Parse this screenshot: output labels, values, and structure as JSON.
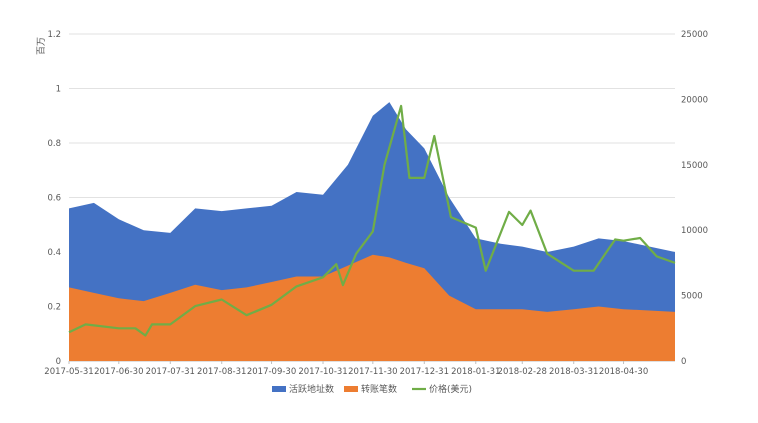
{
  "chart_data": {
    "type": "area",
    "y_unit_label": "百万",
    "left_axis": {
      "ylim": [
        0,
        1.2
      ],
      "ticks": [
        "0",
        "0.2",
        "0.4",
        "0.6",
        "0.8",
        "1",
        "1.2"
      ]
    },
    "right_axis": {
      "ylim": [
        0,
        25000
      ],
      "ticks": [
        "0",
        "5000",
        "10000",
        "15000",
        "20000",
        "25000"
      ]
    },
    "x_tick_labels": [
      "2017-05-31",
      "2017-06-30",
      "2017-07-31",
      "2017-08-31",
      "2017-09-30",
      "2017-10-31",
      "2017-11-30",
      "2017-12-31",
      "2018-01-31",
      "2018-02-28",
      "2018-03-31",
      "2018-04-30"
    ],
    "x_range": [
      "2017-05-31",
      "2018-05-31"
    ],
    "grid": "horizontal",
    "legend_position": "bottom",
    "series": [
      {
        "name": "活跃地址数",
        "kind": "area",
        "axis": "left",
        "color": "#4472C4",
        "points": [
          [
            "2017-05-31",
            0.56
          ],
          [
            "2017-06-15",
            0.58
          ],
          [
            "2017-06-30",
            0.52
          ],
          [
            "2017-07-15",
            0.48
          ],
          [
            "2017-07-31",
            0.47
          ],
          [
            "2017-08-15",
            0.56
          ],
          [
            "2017-08-31",
            0.55
          ],
          [
            "2017-09-15",
            0.56
          ],
          [
            "2017-09-30",
            0.57
          ],
          [
            "2017-10-15",
            0.62
          ],
          [
            "2017-10-31",
            0.61
          ],
          [
            "2017-11-15",
            0.72
          ],
          [
            "2017-11-30",
            0.9
          ],
          [
            "2017-12-10",
            0.95
          ],
          [
            "2017-12-20",
            0.85
          ],
          [
            "2017-12-31",
            0.78
          ],
          [
            "2018-01-15",
            0.6
          ],
          [
            "2018-01-31",
            0.45
          ],
          [
            "2018-02-15",
            0.43
          ],
          [
            "2018-02-28",
            0.42
          ],
          [
            "2018-03-15",
            0.4
          ],
          [
            "2018-03-31",
            0.42
          ],
          [
            "2018-04-15",
            0.45
          ],
          [
            "2018-04-30",
            0.44
          ],
          [
            "2018-05-31",
            0.4
          ]
        ]
      },
      {
        "name": "转账笔数",
        "kind": "area",
        "axis": "left",
        "color": "#ED7D31",
        "points": [
          [
            "2017-05-31",
            0.27
          ],
          [
            "2017-06-15",
            0.25
          ],
          [
            "2017-06-30",
            0.23
          ],
          [
            "2017-07-15",
            0.22
          ],
          [
            "2017-07-31",
            0.25
          ],
          [
            "2017-08-15",
            0.28
          ],
          [
            "2017-08-31",
            0.26
          ],
          [
            "2017-09-15",
            0.27
          ],
          [
            "2017-09-30",
            0.29
          ],
          [
            "2017-10-15",
            0.31
          ],
          [
            "2017-10-31",
            0.31
          ],
          [
            "2017-11-15",
            0.35
          ],
          [
            "2017-11-30",
            0.39
          ],
          [
            "2017-12-10",
            0.38
          ],
          [
            "2017-12-20",
            0.36
          ],
          [
            "2017-12-31",
            0.34
          ],
          [
            "2018-01-15",
            0.24
          ],
          [
            "2018-01-31",
            0.19
          ],
          [
            "2018-02-15",
            0.19
          ],
          [
            "2018-02-28",
            0.19
          ],
          [
            "2018-03-15",
            0.18
          ],
          [
            "2018-03-31",
            0.19
          ],
          [
            "2018-04-15",
            0.2
          ],
          [
            "2018-04-30",
            0.19
          ],
          [
            "2018-05-31",
            0.18
          ]
        ]
      },
      {
        "name": "价格(美元)",
        "kind": "line",
        "axis": "right",
        "color": "#70AD47",
        "points": [
          [
            "2017-05-31",
            2200
          ],
          [
            "2017-06-10",
            2800
          ],
          [
            "2017-06-30",
            2500
          ],
          [
            "2017-07-10",
            2500
          ],
          [
            "2017-07-16",
            1950
          ],
          [
            "2017-07-20",
            2800
          ],
          [
            "2017-07-31",
            2800
          ],
          [
            "2017-08-15",
            4200
          ],
          [
            "2017-08-31",
            4700
          ],
          [
            "2017-09-15",
            3500
          ],
          [
            "2017-09-30",
            4300
          ],
          [
            "2017-10-15",
            5700
          ],
          [
            "2017-10-31",
            6400
          ],
          [
            "2017-11-08",
            7400
          ],
          [
            "2017-11-12",
            5800
          ],
          [
            "2017-11-20",
            8200
          ],
          [
            "2017-11-30",
            9900
          ],
          [
            "2017-12-07",
            15000
          ],
          [
            "2017-12-17",
            19500
          ],
          [
            "2017-12-22",
            14000
          ],
          [
            "2017-12-31",
            14000
          ],
          [
            "2018-01-06",
            17200
          ],
          [
            "2018-01-16",
            11000
          ],
          [
            "2018-01-31",
            10200
          ],
          [
            "2018-02-06",
            6900
          ],
          [
            "2018-02-20",
            11400
          ],
          [
            "2018-02-28",
            10400
          ],
          [
            "2018-03-05",
            11500
          ],
          [
            "2018-03-15",
            8200
          ],
          [
            "2018-03-31",
            6900
          ],
          [
            "2018-04-12",
            6900
          ],
          [
            "2018-04-25",
            9300
          ],
          [
            "2018-04-30",
            9200
          ],
          [
            "2018-05-10",
            9400
          ],
          [
            "2018-05-20",
            8000
          ],
          [
            "2018-05-31",
            7500
          ]
        ]
      }
    ]
  }
}
